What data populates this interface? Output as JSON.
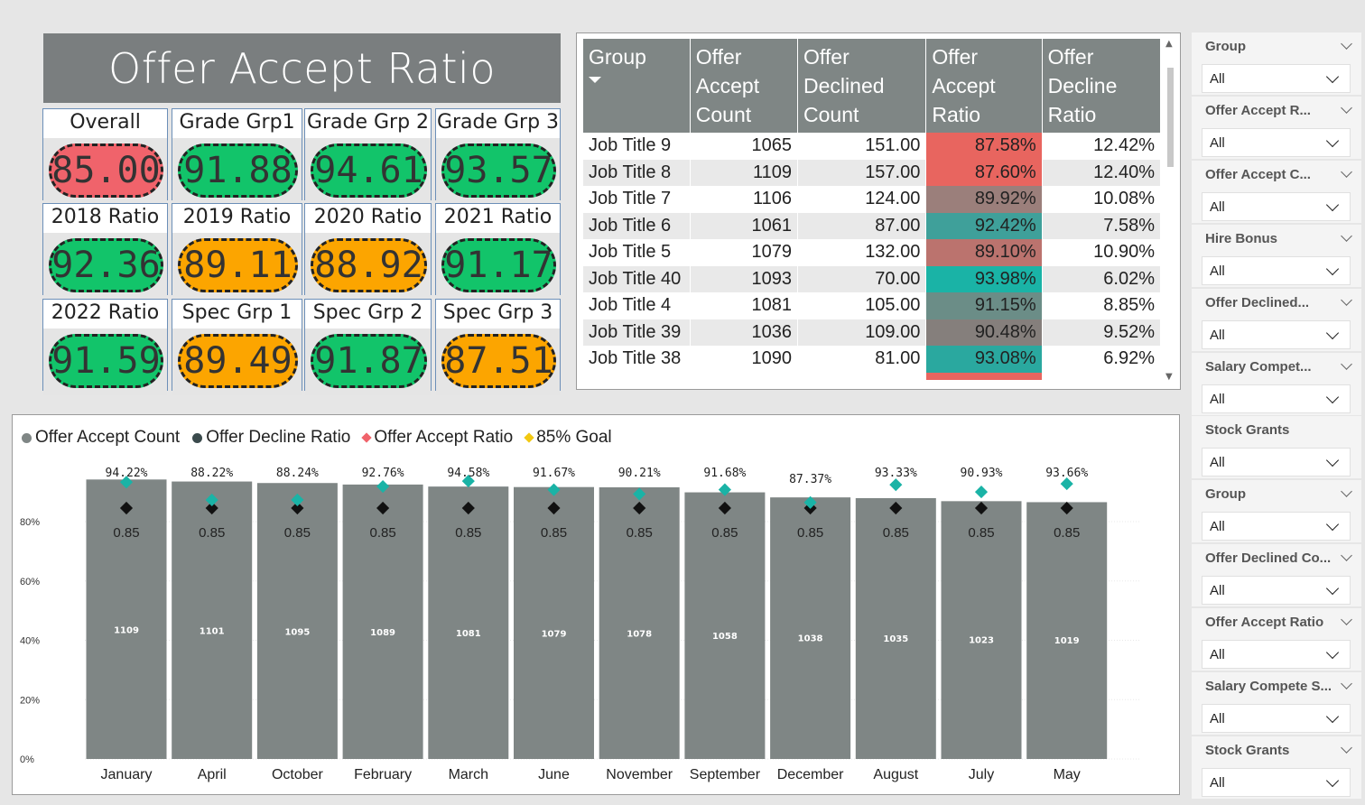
{
  "kpi": {
    "title": "Offer Accept Ratio",
    "cards": [
      {
        "label": "Overall",
        "value": "85.00",
        "status": "red"
      },
      {
        "label": "Grade Grp1",
        "value": "91.88",
        "status": "green"
      },
      {
        "label": "Grade Grp 2",
        "value": "94.61",
        "status": "green"
      },
      {
        "label": "Grade Grp 3",
        "value": "93.57",
        "status": "green"
      },
      {
        "label": "2018 Ratio",
        "value": "92.36",
        "status": "green"
      },
      {
        "label": "2019 Ratio",
        "value": "89.11",
        "status": "orange"
      },
      {
        "label": "2020 Ratio",
        "value": "88.92",
        "status": "orange"
      },
      {
        "label": "2021 Ratio",
        "value": "91.17",
        "status": "green"
      },
      {
        "label": "2022 Ratio",
        "value": "91.59",
        "status": "green"
      },
      {
        "label": "Spec Grp 1",
        "value": "89.49",
        "status": "orange"
      },
      {
        "label": "Spec Grp 2",
        "value": "91.87",
        "status": "green"
      },
      {
        "label": "Spec Grp 3",
        "value": "87.51",
        "status": "orange"
      }
    ],
    "colors": {
      "red": "#f0636b",
      "green": "#12c46a",
      "orange": "#fca500"
    }
  },
  "table": {
    "headers": [
      "Group",
      "Offer Accept Count",
      "Offer Declined Count",
      "Offer Accept Ratio",
      "Offer Decline Ratio"
    ],
    "rows": [
      {
        "group": "Job Title 9",
        "accept": "1065",
        "declined": "151.00",
        "ratio": "87.58%",
        "decline_ratio": "12.42%",
        "ratio_color": "#e8655f"
      },
      {
        "group": "Job Title 8",
        "accept": "1109",
        "declined": "157.00",
        "ratio": "87.60%",
        "decline_ratio": "12.40%",
        "ratio_color": "#e8655f"
      },
      {
        "group": "Job Title 7",
        "accept": "1106",
        "declined": "124.00",
        "ratio": "89.92%",
        "decline_ratio": "10.08%",
        "ratio_color": "#9b7f7b"
      },
      {
        "group": "Job Title 6",
        "accept": "1061",
        "declined": "87.00",
        "ratio": "92.42%",
        "decline_ratio": "7.58%",
        "ratio_color": "#3fa09a"
      },
      {
        "group": "Job Title 5",
        "accept": "1079",
        "declined": "132.00",
        "ratio": "89.10%",
        "decline_ratio": "10.90%",
        "ratio_color": "#bb736e"
      },
      {
        "group": "Job Title 40",
        "accept": "1093",
        "declined": "70.00",
        "ratio": "93.98%",
        "decline_ratio": "6.02%",
        "ratio_color": "#1ab3a6"
      },
      {
        "group": "Job Title 4",
        "accept": "1081",
        "declined": "105.00",
        "ratio": "91.15%",
        "decline_ratio": "8.85%",
        "ratio_color": "#6b8d87"
      },
      {
        "group": "Job Title 39",
        "accept": "1036",
        "declined": "109.00",
        "ratio": "90.48%",
        "decline_ratio": "9.52%",
        "ratio_color": "#857f7c"
      },
      {
        "group": "Job Title 38",
        "accept": "1090",
        "declined": "81.00",
        "ratio": "93.08%",
        "decline_ratio": "6.92%",
        "ratio_color": "#2aa89f"
      }
    ]
  },
  "chart_data": {
    "type": "bar",
    "legend": [
      "Offer Accept Count",
      "Offer Decline Ratio",
      "Offer Accept Ratio",
      "85% Goal"
    ],
    "legend_colors": [
      "#7f8685",
      "#3a4a4c",
      "#f0636b",
      "#f2c811"
    ],
    "categories": [
      "January",
      "April",
      "October",
      "February",
      "March",
      "June",
      "November",
      "September",
      "December",
      "August",
      "July",
      "May"
    ],
    "accept_count": [
      1109,
      1101,
      1095,
      1089,
      1081,
      1079,
      1078,
      1058,
      1038,
      1035,
      1023,
      1019
    ],
    "accept_ratio": [
      94.22,
      88.22,
      88.24,
      92.76,
      94.58,
      91.67,
      90.21,
      91.68,
      87.37,
      93.33,
      90.93,
      93.66
    ],
    "accept_ratio_labels": [
      "94.22%",
      "88.22%",
      "88.24%",
      "92.76%",
      "94.58%",
      "91.67%",
      "90.21%",
      "91.68%",
      "87.37%",
      "93.33%",
      "90.93%",
      "93.66%"
    ],
    "goal_labels": [
      "0.85",
      "0.85",
      "0.85",
      "0.85",
      "0.85",
      "0.85",
      "0.85",
      "0.85",
      "0.85",
      "0.85",
      "0.85",
      "0.85"
    ],
    "goal": 0.85,
    "y_ticks": [
      "0%",
      "20%",
      "40%",
      "60%",
      "80%"
    ],
    "ylim": [
      0,
      100
    ],
    "bar_color": "#7f8685",
    "ratio_marker_color": "#1ab3a6",
    "goal_marker_color": "#111111"
  },
  "slicers": [
    {
      "title": "Group",
      "value": "All"
    },
    {
      "title": "Offer Accept R...",
      "value": "All"
    },
    {
      "title": "Offer Accept C...",
      "value": "All"
    },
    {
      "title": "Hire Bonus",
      "value": "All"
    },
    {
      "title": "Offer Declined...",
      "value": "All"
    },
    {
      "title": "Salary Compet...",
      "value": "All"
    },
    {
      "title": "Stock Grants",
      "value": "All"
    },
    {
      "title": "Group",
      "value": "All"
    },
    {
      "title": "Offer Declined Co...",
      "value": "All"
    },
    {
      "title": "Offer Accept Ratio",
      "value": "All"
    },
    {
      "title": "Salary Compete S...",
      "value": "All"
    },
    {
      "title": "Stock Grants",
      "value": "All"
    }
  ]
}
